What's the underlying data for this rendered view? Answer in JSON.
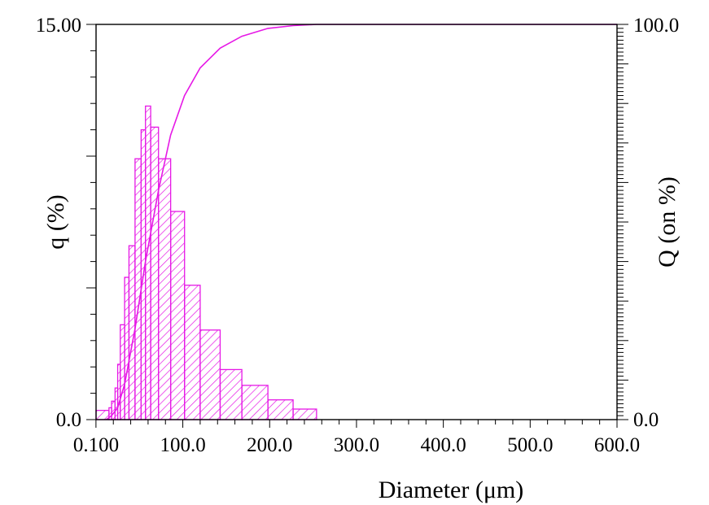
{
  "chart_data": {
    "type": "bar",
    "xlabel": "Diameter (μm)",
    "ylabel_left": "q (%)",
    "ylabel_right": "Q (on %)",
    "x_ticks": [
      0.1,
      100,
      200,
      300,
      400,
      500,
      600
    ],
    "x_tick_labels": [
      "0.100",
      "100.0",
      "200.0",
      "300.0",
      "400.0",
      "500.0",
      "600.0"
    ],
    "xlim": [
      0.1,
      600
    ],
    "ylim_left": [
      0,
      15
    ],
    "ylim_right": [
      0,
      100
    ],
    "y_left_tick_labels": [
      "0.0",
      "15.00"
    ],
    "y_right_tick_labels": [
      "0.0",
      "100.0"
    ],
    "grid": false,
    "color": "#e619e6",
    "histogram_q": [
      {
        "x0": 0.1,
        "x1": 15,
        "q": 0.35
      },
      {
        "x0": 15,
        "x1": 18,
        "q": 0.45
      },
      {
        "x0": 18,
        "x1": 22,
        "q": 0.7
      },
      {
        "x0": 22,
        "x1": 25,
        "q": 1.2
      },
      {
        "x0": 25,
        "x1": 28,
        "q": 2.1
      },
      {
        "x0": 28,
        "x1": 33,
        "q": 3.6
      },
      {
        "x0": 33,
        "x1": 38,
        "q": 5.4
      },
      {
        "x0": 38,
        "x1": 45,
        "q": 6.6
      },
      {
        "x0": 45,
        "x1": 52,
        "q": 9.9
      },
      {
        "x0": 52,
        "x1": 57,
        "q": 11.0
      },
      {
        "x0": 57,
        "x1": 63,
        "q": 11.9
      },
      {
        "x0": 63,
        "x1": 72,
        "q": 11.1
      },
      {
        "x0": 72,
        "x1": 86,
        "q": 9.9
      },
      {
        "x0": 86,
        "x1": 102,
        "q": 7.9
      },
      {
        "x0": 102,
        "x1": 120,
        "q": 5.1
      },
      {
        "x0": 120,
        "x1": 143,
        "q": 3.4
      },
      {
        "x0": 143,
        "x1": 168,
        "q": 1.9
      },
      {
        "x0": 168,
        "x1": 198,
        "q": 1.3
      },
      {
        "x0": 198,
        "x1": 227,
        "q": 0.75
      },
      {
        "x0": 227,
        "x1": 254,
        "q": 0.4
      }
    ],
    "cumulative_Q": {
      "x": [
        12,
        18,
        25,
        33,
        45,
        57,
        72,
        86,
        102,
        120,
        143,
        168,
        198,
        227,
        254,
        300,
        600
      ],
      "y": [
        0,
        1.0,
        3.0,
        9.0,
        23.0,
        40.0,
        58.0,
        72.0,
        82.0,
        89.0,
        94.0,
        97.0,
        99.0,
        99.7,
        100,
        100,
        100
      ]
    }
  }
}
